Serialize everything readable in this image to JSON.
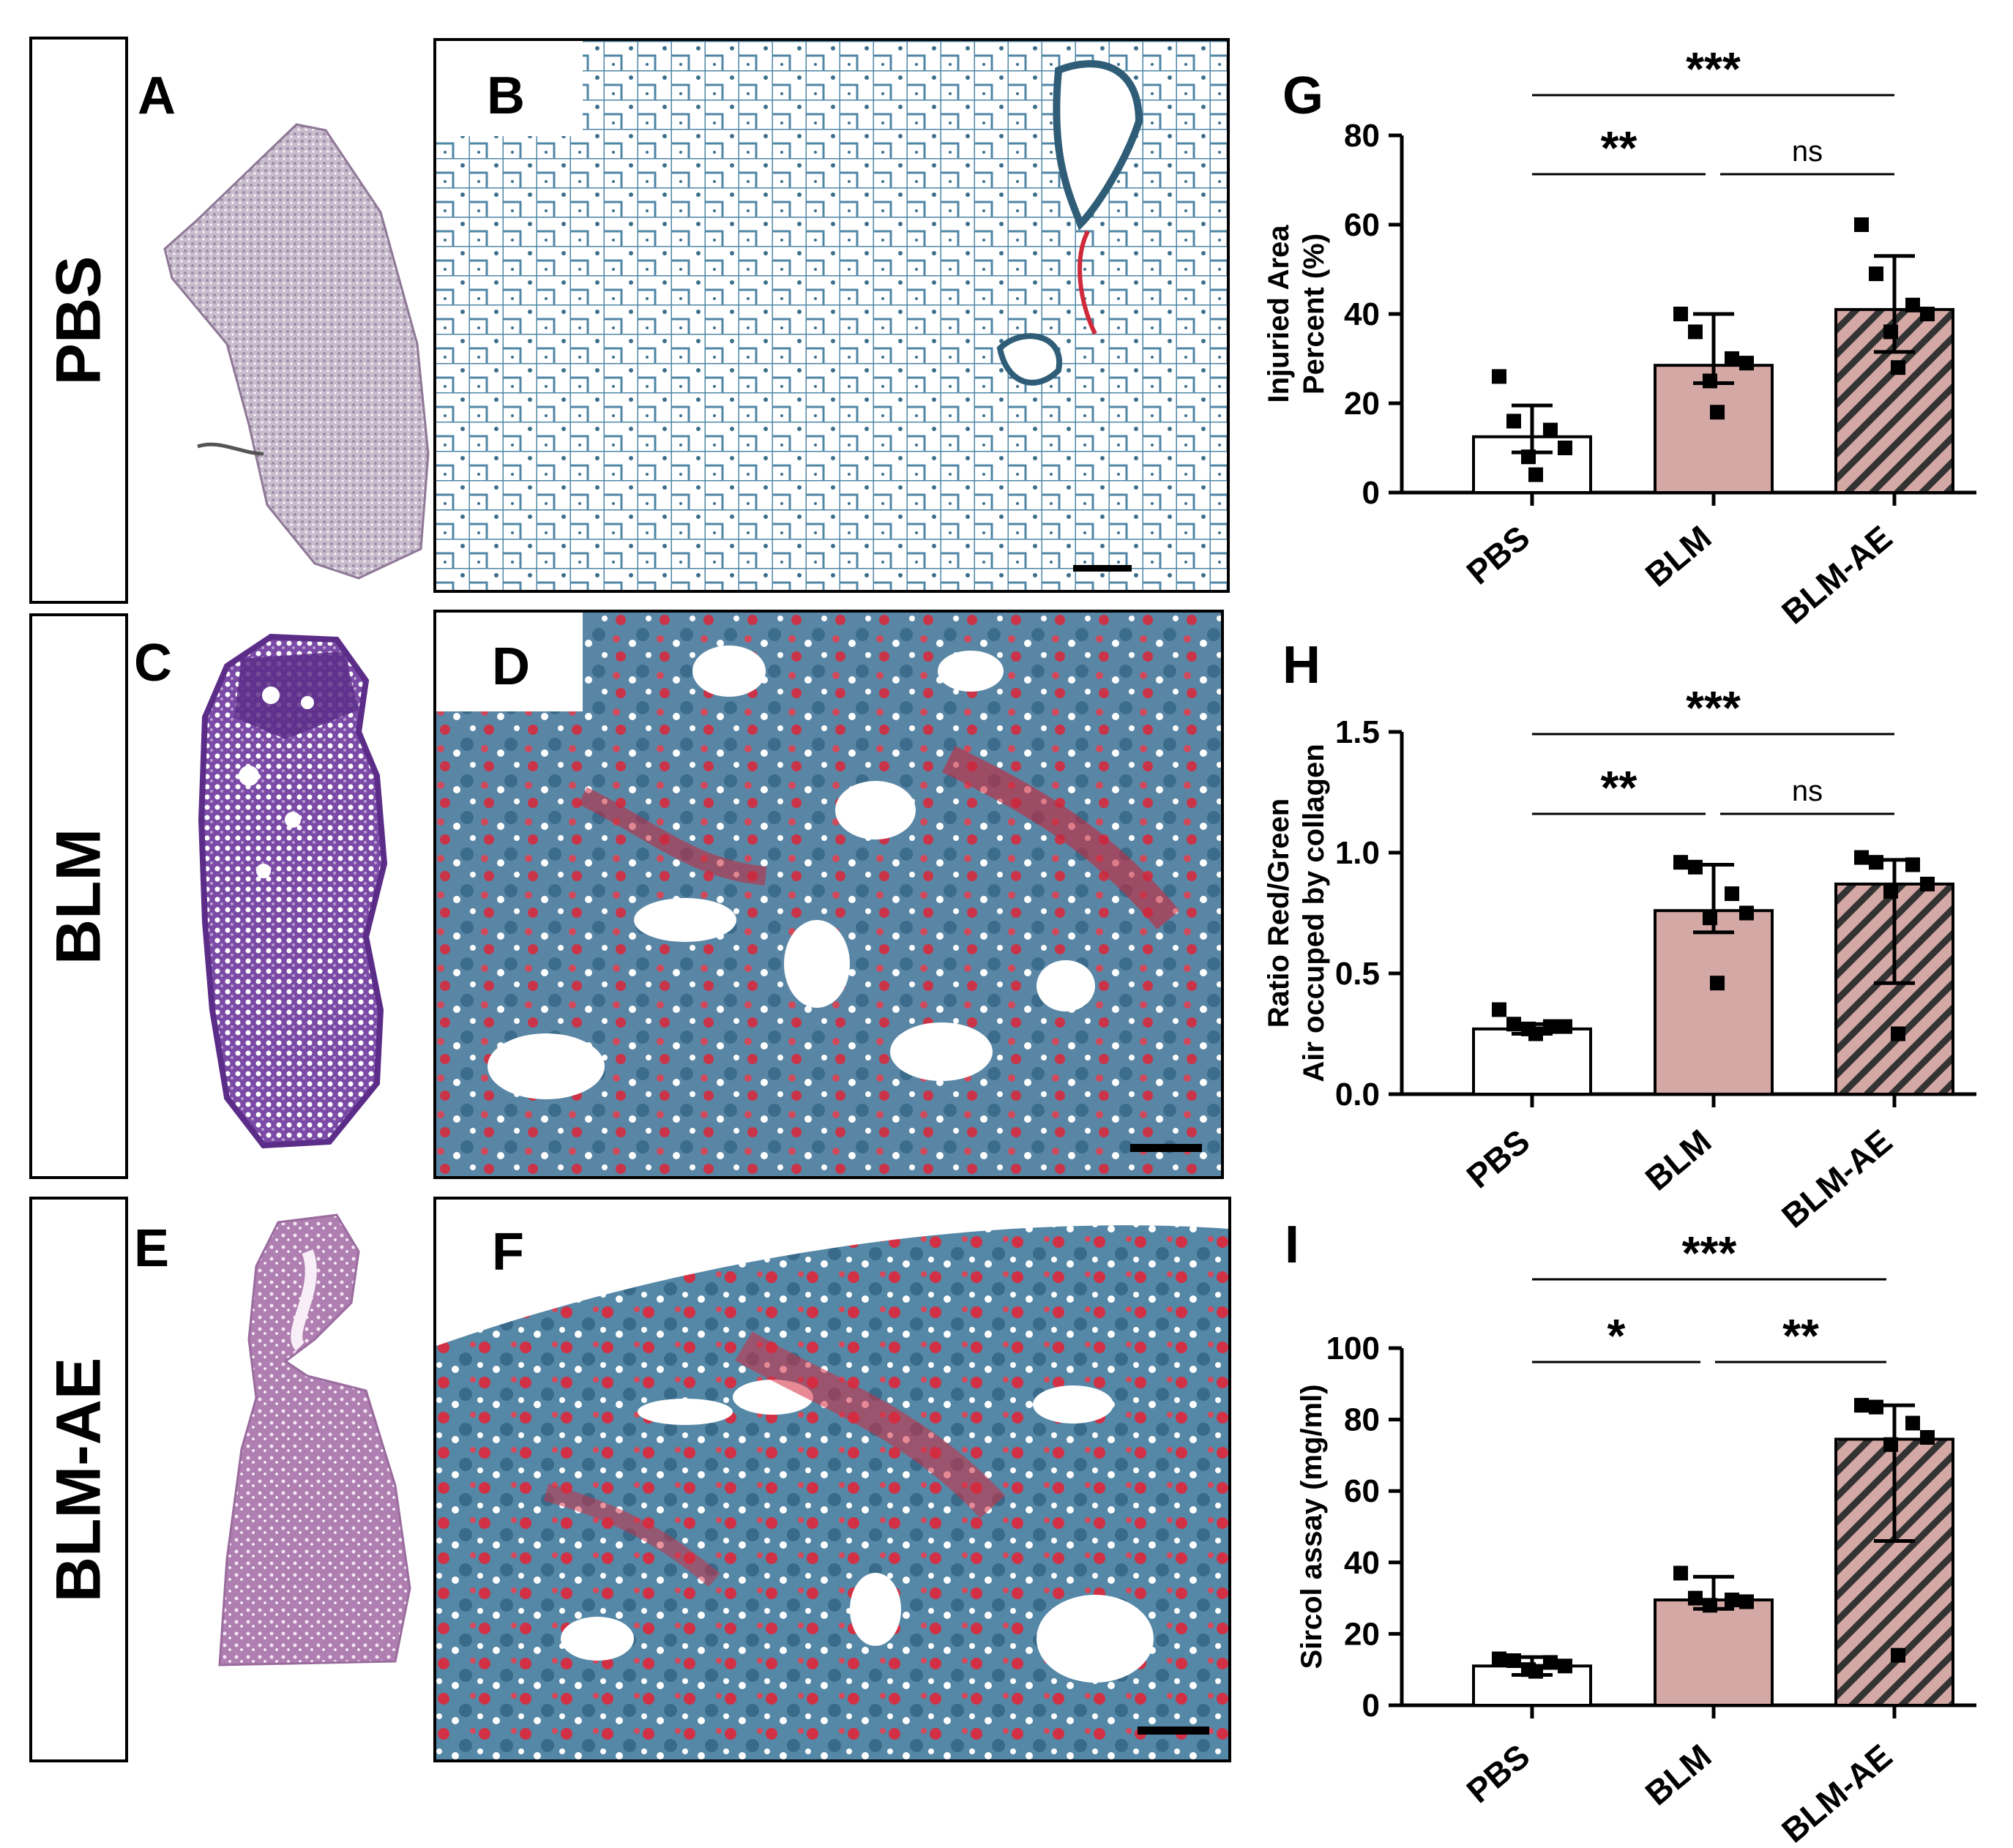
{
  "rows": [
    {
      "label": "PBS"
    },
    {
      "label": "BLM"
    },
    {
      "label": "BLM-AE"
    }
  ],
  "panel_letters": {
    "A": "A",
    "B": "B",
    "C": "C",
    "D": "D",
    "E": "E",
    "F": "F",
    "G": "G",
    "H": "H",
    "I": "I"
  },
  "colors": {
    "pbs_bar": "#ffffff",
    "blm_bar": "#d4a8a4",
    "blm_ae_bar": "#d4a8a4",
    "hatch": "#333333",
    "pbs_lung_stain": "#b7a6be",
    "blm_lung_stain": "#6c3d9b",
    "blm_ae_lung_stain": "#b27eb3",
    "trichrome_blue": "#4f86a6",
    "trichrome_red": "#cf2a3c"
  },
  "chart_data": [
    {
      "panel": "G",
      "type": "bar",
      "ylabel_lines": [
        "Injuried Area",
        "Percent (%)"
      ],
      "categories": [
        "PBS",
        "BLM",
        "BLM-AE"
      ],
      "values": [
        12.5,
        28.5,
        41
      ],
      "errors": [
        [
          9,
          19.5
        ],
        [
          24.5,
          40
        ],
        [
          31.5,
          53
        ]
      ],
      "points": [
        [
          26,
          16,
          14,
          10,
          8,
          4
        ],
        [
          40,
          36,
          30,
          29,
          25,
          18
        ],
        [
          60,
          49,
          42,
          40,
          36,
          28
        ]
      ],
      "ylim": [
        0,
        80
      ],
      "yticks": [
        0,
        20,
        40,
        60,
        80
      ],
      "yticklabels": [
        "0",
        "20",
        "40",
        "60",
        "80"
      ],
      "significance": [
        {
          "from": "PBS",
          "to": "BLM",
          "label": "**"
        },
        {
          "from": "BLM",
          "to": "BLM-AE",
          "label": "ns"
        },
        {
          "from": "PBS",
          "to": "BLM-AE",
          "label": "***"
        }
      ]
    },
    {
      "panel": "H",
      "type": "bar",
      "ylabel_lines": [
        "Ratio Red/Green",
        "Air occuped by collagen"
      ],
      "categories": [
        "PBS",
        "BLM",
        "BLM-AE"
      ],
      "values": [
        0.27,
        0.76,
        0.87
      ],
      "errors": [
        [
          0.25,
          0.29
        ],
        [
          0.67,
          0.95
        ],
        [
          0.46,
          0.97
        ]
      ],
      "points": [
        [
          0.35,
          0.29,
          0.28,
          0.28,
          0.27,
          0.25
        ],
        [
          0.96,
          0.94,
          0.83,
          0.75,
          0.73,
          0.46
        ],
        [
          0.98,
          0.96,
          0.95,
          0.87,
          0.84,
          0.25
        ]
      ],
      "ylim": [
        0,
        1.5
      ],
      "yticks": [
        0,
        0.5,
        1.0,
        1.5
      ],
      "yticklabels": [
        "0.0",
        "0.5",
        "1.0",
        "1.5"
      ],
      "significance": [
        {
          "from": "PBS",
          "to": "BLM",
          "label": "**"
        },
        {
          "from": "BLM",
          "to": "BLM-AE",
          "label": "ns"
        },
        {
          "from": "PBS",
          "to": "BLM-AE",
          "label": "***"
        }
      ]
    },
    {
      "panel": "I",
      "type": "bar",
      "ylabel_lines": [
        "Sircol assay (mg/ml)"
      ],
      "categories": [
        "PBS",
        "BLM",
        "BLM-AE"
      ],
      "values": [
        11,
        29.5,
        74.5
      ],
      "errors": [
        [
          8.5,
          13.5
        ],
        [
          27,
          36
        ],
        [
          46,
          84
        ]
      ],
      "points": [
        [
          13,
          12.5,
          12,
          11,
          10,
          9.5
        ],
        [
          37,
          30,
          29.5,
          29,
          28
        ],
        [
          84,
          83.5,
          79,
          75,
          73,
          14
        ]
      ],
      "ylim": [
        0,
        100
      ],
      "yticks": [
        0,
        20,
        40,
        60,
        80,
        100
      ],
      "yticklabels": [
        "0",
        "20",
        "40",
        "60",
        "80",
        "100"
      ],
      "significance": [
        {
          "from": "PBS",
          "to": "BLM",
          "label": "*"
        },
        {
          "from": "BLM",
          "to": "BLM-AE",
          "label": "**"
        },
        {
          "from": "PBS",
          "to": "BLM-AE",
          "label": "***"
        }
      ]
    }
  ]
}
